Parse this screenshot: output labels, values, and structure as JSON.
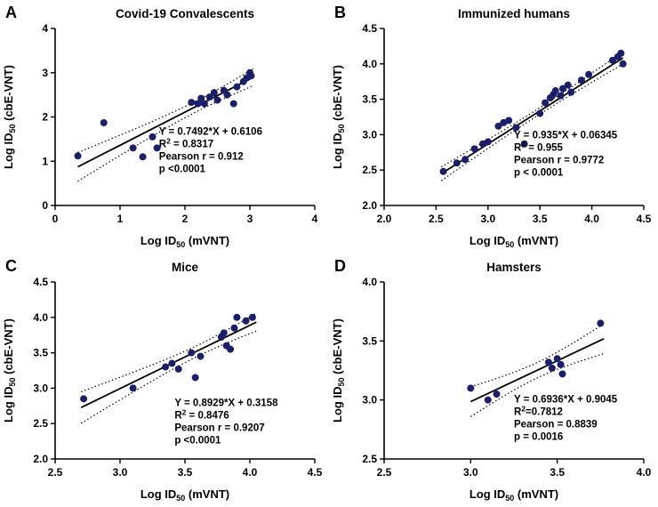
{
  "figure": {
    "background": "#ffffff",
    "point_color": "#1a1f6b",
    "line_color": "#000000",
    "text_color": "#000000"
  },
  "chart_data": [
    {
      "panel": "A",
      "type": "scatter",
      "title": "Covid-19 Convalescents",
      "xlabel": {
        "pre": "Log ID",
        "sub": "50",
        "post": " (mVNT)"
      },
      "ylabel": {
        "pre": "Log ID",
        "sub": "50",
        "post": " (cbE-VNT)"
      },
      "xlim": [
        0,
        4
      ],
      "ylim": [
        0,
        4
      ],
      "xticks": [
        0,
        1,
        2,
        3,
        4
      ],
      "yticks": [
        0,
        1,
        2,
        3,
        4
      ],
      "tick_decimals": 0,
      "grid": false,
      "points": [
        [
          0.35,
          1.12
        ],
        [
          0.75,
          1.87
        ],
        [
          1.2,
          1.3
        ],
        [
          1.35,
          1.1
        ],
        [
          1.5,
          1.55
        ],
        [
          1.57,
          1.3
        ],
        [
          2.1,
          2.33
        ],
        [
          2.2,
          2.3
        ],
        [
          2.25,
          2.42
        ],
        [
          2.3,
          2.3
        ],
        [
          2.38,
          2.45
        ],
        [
          2.45,
          2.55
        ],
        [
          2.5,
          2.38
        ],
        [
          2.6,
          2.6
        ],
        [
          2.65,
          2.5
        ],
        [
          2.75,
          2.3
        ],
        [
          2.8,
          2.68
        ],
        [
          2.9,
          2.8
        ],
        [
          2.95,
          2.88
        ],
        [
          3.0,
          3.0
        ],
        [
          3.02,
          2.93
        ]
      ],
      "fit": {
        "slope": 0.7492,
        "intercept": 0.6106,
        "x_start": 0.35,
        "x_end": 3.05
      },
      "stats_lines": [
        "Y = 0.7492*X + 0.6106",
        "R^2 = 0.8317",
        "Pearson r = 0.912",
        "p <0.0001"
      ],
      "stats_pos": [
        0.4,
        0.6
      ]
    },
    {
      "panel": "B",
      "type": "scatter",
      "title": "Immunized humans",
      "xlabel": {
        "pre": "Log ID",
        "sub": "50",
        "post": " (mVNT)"
      },
      "ylabel": {
        "pre": "Log ID",
        "sub": "50",
        "post": " (cbE-VNT)"
      },
      "xlim": [
        2.0,
        4.5
      ],
      "ylim": [
        2.0,
        4.5
      ],
      "xticks": [
        2.0,
        2.5,
        3.0,
        3.5,
        4.0,
        4.5
      ],
      "yticks": [
        2.0,
        2.5,
        3.0,
        3.5,
        4.0,
        4.5
      ],
      "tick_decimals": 1,
      "grid": false,
      "points": [
        [
          2.57,
          2.48
        ],
        [
          2.7,
          2.6
        ],
        [
          2.78,
          2.65
        ],
        [
          2.87,
          2.8
        ],
        [
          2.95,
          2.87
        ],
        [
          3.0,
          2.9
        ],
        [
          3.1,
          3.12
        ],
        [
          3.15,
          3.17
        ],
        [
          3.2,
          3.2
        ],
        [
          3.27,
          3.1
        ],
        [
          3.35,
          2.87
        ],
        [
          3.5,
          3.3
        ],
        [
          3.55,
          3.45
        ],
        [
          3.6,
          3.52
        ],
        [
          3.63,
          3.57
        ],
        [
          3.65,
          3.62
        ],
        [
          3.7,
          3.55
        ],
        [
          3.72,
          3.65
        ],
        [
          3.77,
          3.7
        ],
        [
          3.8,
          3.6
        ],
        [
          3.9,
          3.77
        ],
        [
          3.97,
          3.85
        ],
        [
          4.2,
          4.05
        ],
        [
          4.25,
          4.1
        ],
        [
          4.28,
          4.15
        ],
        [
          4.3,
          4.0
        ]
      ],
      "fit": {
        "slope": 0.935,
        "intercept": 0.06345,
        "x_start": 2.55,
        "x_end": 4.3
      },
      "stats_lines": [
        "Y = 0.935*X + 0.06345",
        "R^2 = 0.955",
        "Pearson r = 0.9772",
        "p < 0.0001"
      ],
      "stats_pos": [
        0.5,
        0.62
      ]
    },
    {
      "panel": "C",
      "type": "scatter",
      "title": "Mice",
      "xlabel": {
        "pre": "Log ID",
        "sub": "50",
        "post": " (mVNT)"
      },
      "ylabel": {
        "pre": "Log ID",
        "sub": "50",
        "post": " (cbE-VNT)"
      },
      "xlim": [
        2.5,
        4.5
      ],
      "ylim": [
        2.0,
        4.5
      ],
      "xticks": [
        2.5,
        3.0,
        3.5,
        4.0,
        4.5
      ],
      "yticks": [
        2.0,
        2.5,
        3.0,
        3.5,
        4.0,
        4.5
      ],
      "tick_decimals": 1,
      "grid": false,
      "points": [
        [
          2.72,
          2.85
        ],
        [
          3.1,
          3.0
        ],
        [
          3.35,
          3.3
        ],
        [
          3.4,
          3.35
        ],
        [
          3.45,
          3.27
        ],
        [
          3.55,
          3.5
        ],
        [
          3.58,
          3.15
        ],
        [
          3.62,
          3.45
        ],
        [
          3.78,
          3.72
        ],
        [
          3.8,
          3.78
        ],
        [
          3.82,
          3.6
        ],
        [
          3.85,
          3.55
        ],
        [
          3.88,
          3.85
        ],
        [
          3.9,
          4.0
        ],
        [
          3.97,
          3.95
        ],
        [
          4.02,
          4.0
        ]
      ],
      "fit": {
        "slope": 0.8929,
        "intercept": 0.3158,
        "x_start": 2.7,
        "x_end": 4.05
      },
      "stats_lines": [
        "Y = 0.8929*X + 0.3158",
        "R^2 = 0.8476",
        "Pearson r = 0.9207",
        "p <0.0001"
      ],
      "stats_pos": [
        0.46,
        0.7
      ]
    },
    {
      "panel": "D",
      "type": "scatter",
      "title": "Hamsters",
      "xlabel": {
        "pre": "Log ID",
        "sub": "50",
        "post": " (mVNT)"
      },
      "ylabel": {
        "pre": "Log ID",
        "sub": "50",
        "post": " (cbE-VNT)"
      },
      "xlim": [
        2.5,
        4.0
      ],
      "ylim": [
        2.5,
        4.0
      ],
      "xticks": [
        2.5,
        3.0,
        3.5,
        4.0
      ],
      "yticks": [
        2.5,
        3.0,
        3.5,
        4.0
      ],
      "tick_decimals": 1,
      "grid": false,
      "points": [
        [
          3.0,
          3.1
        ],
        [
          3.1,
          3.0
        ],
        [
          3.15,
          3.05
        ],
        [
          3.45,
          3.32
        ],
        [
          3.47,
          3.27
        ],
        [
          3.5,
          3.35
        ],
        [
          3.52,
          3.3
        ],
        [
          3.53,
          3.22
        ],
        [
          3.75,
          3.65
        ]
      ],
      "fit": {
        "slope": 0.6936,
        "intercept": 0.9045,
        "x_start": 3.0,
        "x_end": 3.77
      },
      "stats_lines": [
        "Y = 0.6936*X + 0.9045",
        "R^2=0.7812",
        "Pearson = 0.8839",
        "p = 0.0016"
      ],
      "stats_pos": [
        0.5,
        0.68
      ]
    }
  ]
}
